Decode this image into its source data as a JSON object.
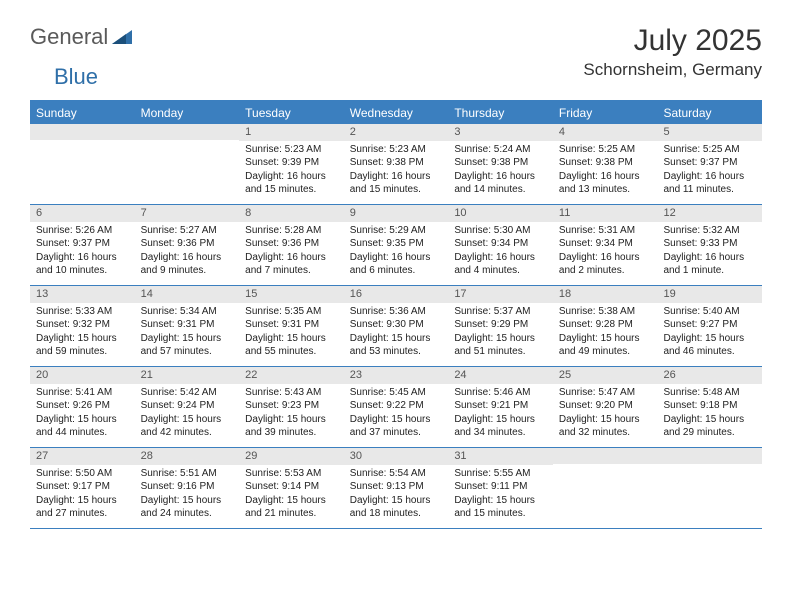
{
  "logo": {
    "part1": "General",
    "part2": "Blue"
  },
  "title": "July 2025",
  "location": "Schornsheim, Germany",
  "header_bg": "#3b7fbf",
  "weekdays": [
    "Sunday",
    "Monday",
    "Tuesday",
    "Wednesday",
    "Thursday",
    "Friday",
    "Saturday"
  ],
  "weeks": [
    [
      {
        "n": "",
        "r": "",
        "s": "",
        "d": ""
      },
      {
        "n": "",
        "r": "",
        "s": "",
        "d": ""
      },
      {
        "n": "1",
        "r": "Sunrise: 5:23 AM",
        "s": "Sunset: 9:39 PM",
        "d": "Daylight: 16 hours and 15 minutes."
      },
      {
        "n": "2",
        "r": "Sunrise: 5:23 AM",
        "s": "Sunset: 9:38 PM",
        "d": "Daylight: 16 hours and 15 minutes."
      },
      {
        "n": "3",
        "r": "Sunrise: 5:24 AM",
        "s": "Sunset: 9:38 PM",
        "d": "Daylight: 16 hours and 14 minutes."
      },
      {
        "n": "4",
        "r": "Sunrise: 5:25 AM",
        "s": "Sunset: 9:38 PM",
        "d": "Daylight: 16 hours and 13 minutes."
      },
      {
        "n": "5",
        "r": "Sunrise: 5:25 AM",
        "s": "Sunset: 9:37 PM",
        "d": "Daylight: 16 hours and 11 minutes."
      }
    ],
    [
      {
        "n": "6",
        "r": "Sunrise: 5:26 AM",
        "s": "Sunset: 9:37 PM",
        "d": "Daylight: 16 hours and 10 minutes."
      },
      {
        "n": "7",
        "r": "Sunrise: 5:27 AM",
        "s": "Sunset: 9:36 PM",
        "d": "Daylight: 16 hours and 9 minutes."
      },
      {
        "n": "8",
        "r": "Sunrise: 5:28 AM",
        "s": "Sunset: 9:36 PM",
        "d": "Daylight: 16 hours and 7 minutes."
      },
      {
        "n": "9",
        "r": "Sunrise: 5:29 AM",
        "s": "Sunset: 9:35 PM",
        "d": "Daylight: 16 hours and 6 minutes."
      },
      {
        "n": "10",
        "r": "Sunrise: 5:30 AM",
        "s": "Sunset: 9:34 PM",
        "d": "Daylight: 16 hours and 4 minutes."
      },
      {
        "n": "11",
        "r": "Sunrise: 5:31 AM",
        "s": "Sunset: 9:34 PM",
        "d": "Daylight: 16 hours and 2 minutes."
      },
      {
        "n": "12",
        "r": "Sunrise: 5:32 AM",
        "s": "Sunset: 9:33 PM",
        "d": "Daylight: 16 hours and 1 minute."
      }
    ],
    [
      {
        "n": "13",
        "r": "Sunrise: 5:33 AM",
        "s": "Sunset: 9:32 PM",
        "d": "Daylight: 15 hours and 59 minutes."
      },
      {
        "n": "14",
        "r": "Sunrise: 5:34 AM",
        "s": "Sunset: 9:31 PM",
        "d": "Daylight: 15 hours and 57 minutes."
      },
      {
        "n": "15",
        "r": "Sunrise: 5:35 AM",
        "s": "Sunset: 9:31 PM",
        "d": "Daylight: 15 hours and 55 minutes."
      },
      {
        "n": "16",
        "r": "Sunrise: 5:36 AM",
        "s": "Sunset: 9:30 PM",
        "d": "Daylight: 15 hours and 53 minutes."
      },
      {
        "n": "17",
        "r": "Sunrise: 5:37 AM",
        "s": "Sunset: 9:29 PM",
        "d": "Daylight: 15 hours and 51 minutes."
      },
      {
        "n": "18",
        "r": "Sunrise: 5:38 AM",
        "s": "Sunset: 9:28 PM",
        "d": "Daylight: 15 hours and 49 minutes."
      },
      {
        "n": "19",
        "r": "Sunrise: 5:40 AM",
        "s": "Sunset: 9:27 PM",
        "d": "Daylight: 15 hours and 46 minutes."
      }
    ],
    [
      {
        "n": "20",
        "r": "Sunrise: 5:41 AM",
        "s": "Sunset: 9:26 PM",
        "d": "Daylight: 15 hours and 44 minutes."
      },
      {
        "n": "21",
        "r": "Sunrise: 5:42 AM",
        "s": "Sunset: 9:24 PM",
        "d": "Daylight: 15 hours and 42 minutes."
      },
      {
        "n": "22",
        "r": "Sunrise: 5:43 AM",
        "s": "Sunset: 9:23 PM",
        "d": "Daylight: 15 hours and 39 minutes."
      },
      {
        "n": "23",
        "r": "Sunrise: 5:45 AM",
        "s": "Sunset: 9:22 PM",
        "d": "Daylight: 15 hours and 37 minutes."
      },
      {
        "n": "24",
        "r": "Sunrise: 5:46 AM",
        "s": "Sunset: 9:21 PM",
        "d": "Daylight: 15 hours and 34 minutes."
      },
      {
        "n": "25",
        "r": "Sunrise: 5:47 AM",
        "s": "Sunset: 9:20 PM",
        "d": "Daylight: 15 hours and 32 minutes."
      },
      {
        "n": "26",
        "r": "Sunrise: 5:48 AM",
        "s": "Sunset: 9:18 PM",
        "d": "Daylight: 15 hours and 29 minutes."
      }
    ],
    [
      {
        "n": "27",
        "r": "Sunrise: 5:50 AM",
        "s": "Sunset: 9:17 PM",
        "d": "Daylight: 15 hours and 27 minutes."
      },
      {
        "n": "28",
        "r": "Sunrise: 5:51 AM",
        "s": "Sunset: 9:16 PM",
        "d": "Daylight: 15 hours and 24 minutes."
      },
      {
        "n": "29",
        "r": "Sunrise: 5:53 AM",
        "s": "Sunset: 9:14 PM",
        "d": "Daylight: 15 hours and 21 minutes."
      },
      {
        "n": "30",
        "r": "Sunrise: 5:54 AM",
        "s": "Sunset: 9:13 PM",
        "d": "Daylight: 15 hours and 18 minutes."
      },
      {
        "n": "31",
        "r": "Sunrise: 5:55 AM",
        "s": "Sunset: 9:11 PM",
        "d": "Daylight: 15 hours and 15 minutes."
      },
      {
        "n": "",
        "r": "",
        "s": "",
        "d": ""
      },
      {
        "n": "",
        "r": "",
        "s": "",
        "d": ""
      }
    ]
  ]
}
